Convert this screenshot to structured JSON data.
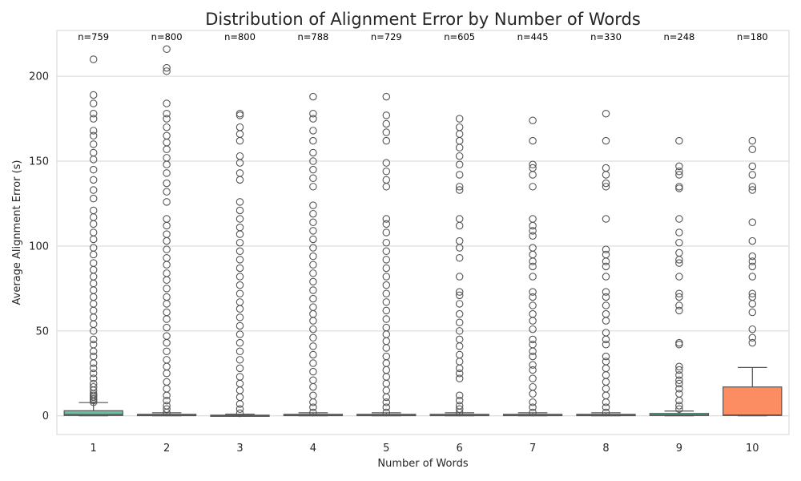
{
  "chart_data": {
    "type": "box",
    "title": "Distribution of Alignment Error by Number of Words",
    "xlabel": "Number of Words",
    "ylabel": "Average Alignment Error (s)",
    "ylim": [
      -11,
      227
    ],
    "yticks": [
      0,
      50,
      100,
      150,
      200
    ],
    "grid": true,
    "categories": [
      "1",
      "2",
      "3",
      "4",
      "5",
      "6",
      "7",
      "8",
      "9",
      "10"
    ],
    "counts": [
      "n=759",
      "n=800",
      "n=800",
      "n=788",
      "n=729",
      "n=605",
      "n=445",
      "n=330",
      "n=248",
      "n=180"
    ],
    "colors": [
      "#66c2a5",
      "#fc8d62",
      "#8da0cb",
      "#e78ac3",
      "#a6d854",
      "#ffd92f",
      "#e5c494",
      "#b3b3b3",
      "#66c2a5",
      "#fc8d62"
    ],
    "boxes": [
      {
        "min": 0,
        "q1": 0.2,
        "median": 0.8,
        "q3": 3.0,
        "max": 7.8,
        "outliers": [
          8,
          9,
          10,
          11,
          12,
          13,
          15,
          17,
          19,
          22,
          25,
          28,
          31,
          35,
          38,
          42,
          45,
          50,
          54,
          58,
          62,
          66,
          70,
          74,
          78,
          82,
          86,
          90,
          95,
          99,
          104,
          108,
          113,
          117,
          121,
          128,
          133,
          139,
          145,
          151,
          155,
          160,
          165,
          168,
          175,
          178,
          184,
          189,
          210
        ]
      },
      {
        "min": 0,
        "q1": 0.1,
        "median": 0.3,
        "q3": 0.9,
        "max": 1.8,
        "outliers": [
          2,
          4,
          6,
          9,
          12,
          16,
          20,
          25,
          29,
          33,
          38,
          43,
          47,
          52,
          57,
          61,
          66,
          70,
          75,
          80,
          84,
          89,
          93,
          98,
          103,
          107,
          112,
          116,
          126,
          132,
          137,
          143,
          148,
          152,
          157,
          161,
          165,
          170,
          175,
          178,
          184,
          203,
          205,
          216
        ]
      },
      {
        "min": 0,
        "q1": 0.05,
        "median": 0.15,
        "q3": 0.4,
        "max": 1.0,
        "outliers": [
          1.5,
          4,
          7,
          11,
          15,
          19,
          23,
          28,
          33,
          38,
          43,
          48,
          53,
          58,
          63,
          67,
          72,
          77,
          82,
          87,
          92,
          97,
          102,
          107,
          111,
          116,
          121,
          126,
          139,
          143,
          149,
          153,
          162,
          166,
          170,
          177,
          178
        ]
      },
      {
        "min": 0,
        "q1": 0.1,
        "median": 0.3,
        "q3": 0.9,
        "max": 1.8,
        "outliers": [
          2,
          5,
          8,
          12,
          17,
          21,
          26,
          31,
          36,
          41,
          46,
          51,
          56,
          60,
          64,
          69,
          74,
          79,
          84,
          89,
          94,
          99,
          104,
          109,
          114,
          119,
          124,
          135,
          140,
          145,
          150,
          155,
          162,
          168,
          175,
          178,
          188
        ]
      },
      {
        "min": 0,
        "q1": 0.1,
        "median": 0.3,
        "q3": 0.9,
        "max": 1.8,
        "outliers": [
          2,
          5,
          8,
          11,
          15,
          19,
          23,
          27,
          31,
          35,
          40,
          44,
          48,
          52,
          57,
          62,
          67,
          72,
          77,
          82,
          87,
          92,
          97,
          102,
          108,
          113,
          116,
          135,
          139,
          144,
          149,
          162,
          167,
          172,
          177,
          188
        ]
      },
      {
        "min": 0,
        "q1": 0.1,
        "median": 0.3,
        "q3": 0.9,
        "max": 1.8,
        "outliers": [
          2,
          4,
          6,
          9,
          12,
          22,
          25,
          28,
          32,
          36,
          41,
          45,
          50,
          55,
          60,
          66,
          71,
          73,
          82,
          93,
          99,
          103,
          112,
          116,
          133,
          135,
          142,
          148,
          153,
          158,
          162,
          166,
          170,
          175
        ]
      },
      {
        "min": 0,
        "q1": 0.1,
        "median": 0.3,
        "q3": 0.9,
        "max": 1.8,
        "outliers": [
          2,
          5,
          8,
          13,
          17,
          22,
          27,
          30,
          35,
          38,
          42,
          45,
          51,
          56,
          60,
          65,
          70,
          73,
          82,
          88,
          91,
          95,
          99,
          106,
          109,
          112,
          116,
          135,
          142,
          146,
          148,
          162,
          174
        ]
      },
      {
        "min": 0,
        "q1": 0.1,
        "median": 0.3,
        "q3": 0.9,
        "max": 1.8,
        "outliers": [
          2,
          5,
          8,
          12,
          16,
          20,
          24,
          28,
          32,
          35,
          42,
          45,
          49,
          56,
          60,
          65,
          70,
          73,
          82,
          88,
          91,
          95,
          98,
          116,
          135,
          137,
          142,
          146,
          162,
          178
        ]
      },
      {
        "min": 0,
        "q1": 0.2,
        "median": 0.5,
        "q3": 1.4,
        "max": 2.8,
        "outliers": [
          4,
          6,
          9,
          13,
          16,
          19,
          21,
          24,
          27,
          29,
          42,
          43,
          62,
          65,
          70,
          72,
          82,
          90,
          92,
          96,
          102,
          108,
          116,
          134,
          135,
          142,
          144,
          147,
          162
        ]
      },
      {
        "min": 0,
        "q1": 0.2,
        "median": 0.5,
        "q3": 17.0,
        "max": 28.5,
        "outliers": [
          43,
          46,
          51,
          61,
          66,
          70,
          72,
          82,
          88,
          91,
          94,
          103,
          114,
          133,
          135,
          142,
          147,
          157,
          162
        ]
      }
    ]
  }
}
